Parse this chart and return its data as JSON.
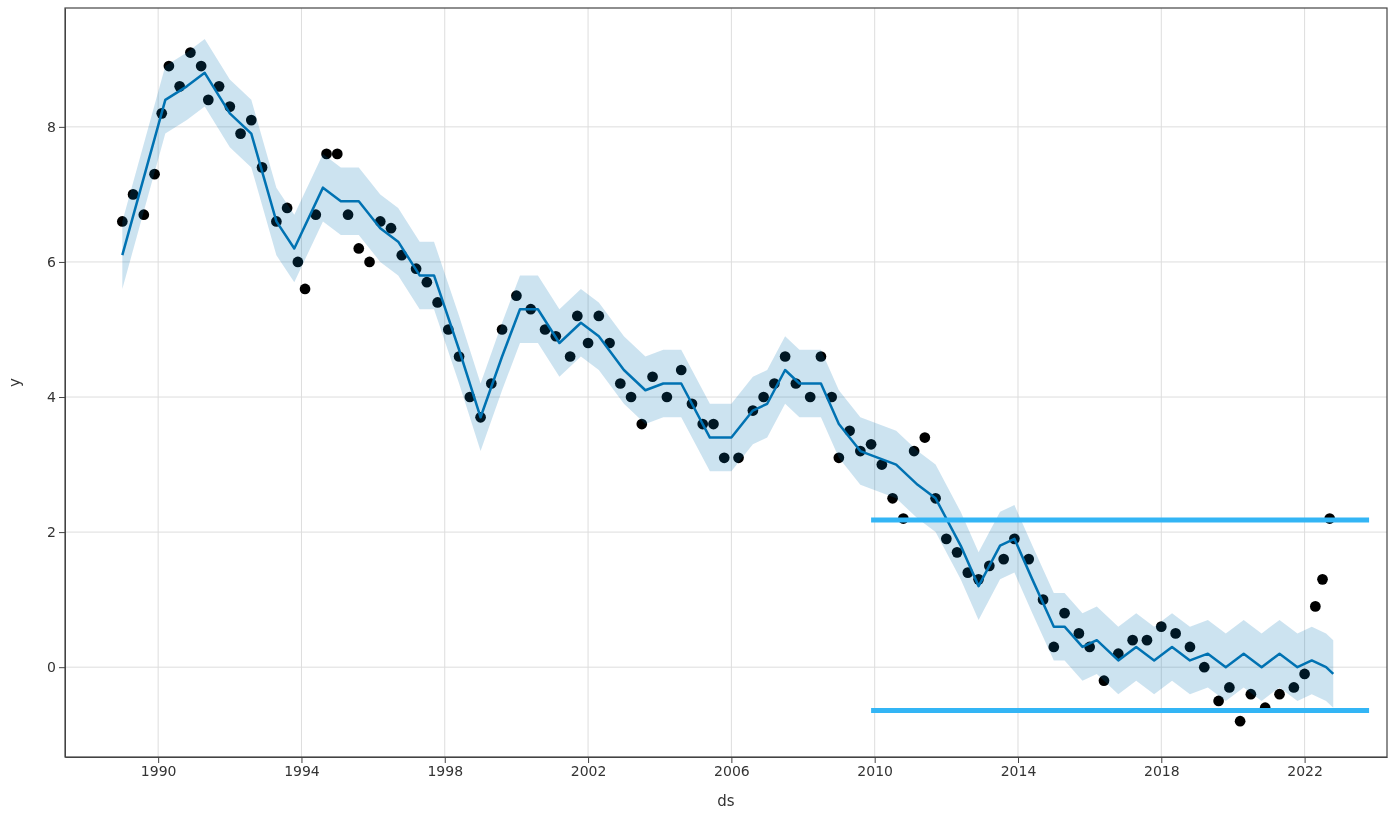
{
  "chart_data": {
    "type": "line",
    "xlabel": "ds",
    "ylabel": "y",
    "xlim": [
      1987.4,
      2024.3
    ],
    "ylim": [
      -1.33,
      9.76
    ],
    "xticks": [
      1990,
      1994,
      1998,
      2002,
      2006,
      2010,
      2014,
      2018,
      2022
    ],
    "yticks": [
      0,
      2,
      4,
      6,
      8
    ],
    "grid": true,
    "series": [
      {
        "type": "scatter",
        "marker": "circle",
        "color": "#000000",
        "x": [
          1989.0,
          1989.3,
          1989.6,
          1989.9,
          1990.1,
          1990.3,
          1990.6,
          1990.9,
          1991.2,
          1991.4,
          1991.7,
          1992.0,
          1992.3,
          1992.6,
          1992.9,
          1993.3,
          1993.6,
          1993.9,
          1994.1,
          1994.4,
          1994.7,
          1995.0,
          1995.3,
          1995.6,
          1995.9,
          1996.2,
          1996.5,
          1996.8,
          1997.2,
          1997.5,
          1997.8,
          1998.1,
          1998.4,
          1998.7,
          1999.0,
          1999.3,
          1999.6,
          2000.0,
          2000.4,
          2000.8,
          2001.1,
          2001.5,
          2001.7,
          2002.0,
          2002.3,
          2002.6,
          2002.9,
          2003.2,
          2003.5,
          2003.8,
          2004.2,
          2004.6,
          2004.9,
          2005.2,
          2005.5,
          2005.8,
          2006.2,
          2006.6,
          2006.9,
          2007.2,
          2007.5,
          2007.8,
          2008.2,
          2008.5,
          2008.8,
          2009.0,
          2009.3,
          2009.6,
          2009.9,
          2010.2,
          2010.5,
          2010.8,
          2011.1,
          2011.4,
          2011.7,
          2012.0,
          2012.3,
          2012.6,
          2012.9,
          2013.2,
          2013.6,
          2013.9,
          2014.3,
          2014.7,
          2015.0,
          2015.3,
          2015.7,
          2016.0,
          2016.4,
          2016.8,
          2017.2,
          2017.6,
          2018.0,
          2018.4,
          2018.8,
          2019.2,
          2019.6,
          2019.9,
          2020.2,
          2020.5,
          2020.9,
          2021.3,
          2021.7,
          2022.0,
          2022.3,
          2022.5,
          2022.7
        ],
        "values": [
          6.6,
          7.0,
          6.7,
          7.3,
          8.2,
          8.9,
          8.6,
          9.1,
          8.9,
          8.4,
          8.6,
          8.3,
          7.9,
          8.1,
          7.4,
          6.6,
          6.8,
          6.0,
          5.6,
          6.7,
          7.6,
          7.6,
          6.7,
          6.2,
          6.0,
          6.6,
          6.5,
          6.1,
          5.9,
          5.7,
          5.4,
          5.0,
          4.6,
          4.0,
          3.7,
          4.2,
          5.0,
          5.5,
          5.3,
          5.0,
          4.9,
          4.6,
          5.2,
          4.8,
          5.2,
          4.8,
          4.2,
          4.0,
          3.6,
          4.3,
          4.0,
          4.4,
          3.9,
          3.6,
          3.6,
          3.1,
          3.1,
          3.8,
          4.0,
          4.2,
          4.6,
          4.2,
          4.0,
          4.6,
          4.0,
          3.1,
          3.5,
          3.2,
          3.3,
          3.0,
          2.5,
          2.2,
          3.2,
          3.4,
          2.5,
          1.9,
          1.7,
          1.4,
          1.3,
          1.5,
          1.6,
          1.9,
          1.6,
          1.0,
          0.3,
          0.8,
          0.5,
          0.3,
          -0.2,
          0.2,
          0.4,
          0.4,
          0.6,
          0.5,
          0.3,
          0.0,
          -0.5,
          -0.3,
          -0.8,
          -0.4,
          -0.6,
          -0.4,
          -0.3,
          -0.1,
          0.9,
          1.3,
          2.2
        ]
      },
      {
        "color": "#0072b2",
        "x": [
          1989.0,
          1990.2,
          1990.8,
          1991.3,
          1992.0,
          1992.6,
          1993.3,
          1993.8,
          1994.6,
          1995.1,
          1995.6,
          1996.2,
          1996.7,
          1997.3,
          1997.7,
          1998.4,
          1999.0,
          1999.6,
          2000.1,
          2000.6,
          2001.2,
          2001.8,
          2002.3,
          2003.0,
          2003.6,
          2004.1,
          2004.6,
          2005.4,
          2006.0,
          2006.6,
          2007.0,
          2007.5,
          2007.9,
          2008.5,
          2009.0,
          2009.6,
          2010.1,
          2010.6,
          2011.2,
          2011.7,
          2012.4,
          2012.9,
          2013.5,
          2013.9,
          2014.4,
          2015.0,
          2015.3,
          2015.8,
          2016.2,
          2016.8,
          2017.3,
          2017.8,
          2018.3,
          2018.8,
          2019.3,
          2019.8,
          2020.3,
          2020.8,
          2021.3,
          2021.8,
          2022.2,
          2022.6,
          2022.8
        ],
        "values": [
          6.1,
          8.4,
          8.6,
          8.8,
          8.2,
          7.9,
          6.6,
          6.2,
          7.1,
          6.9,
          6.9,
          6.5,
          6.3,
          5.8,
          5.8,
          4.7,
          3.7,
          4.6,
          5.3,
          5.3,
          4.8,
          5.1,
          4.9,
          4.4,
          4.1,
          4.2,
          4.2,
          3.4,
          3.4,
          3.8,
          3.9,
          4.4,
          4.2,
          4.2,
          3.6,
          3.2,
          3.1,
          3.0,
          2.7,
          2.5,
          1.8,
          1.2,
          1.8,
          1.9,
          1.3,
          0.6,
          0.6,
          0.3,
          0.4,
          0.1,
          0.3,
          0.1,
          0.3,
          0.1,
          0.2,
          0.0,
          0.2,
          0.0,
          0.2,
          0.0,
          0.1,
          0.0,
          -0.1
        ],
        "lower": [
          5.6,
          7.9,
          8.1,
          8.3,
          7.7,
          7.4,
          6.1,
          5.7,
          6.6,
          6.4,
          6.4,
          6.0,
          5.8,
          5.3,
          5.3,
          4.2,
          3.2,
          4.1,
          4.8,
          4.8,
          4.3,
          4.6,
          4.4,
          3.9,
          3.6,
          3.7,
          3.7,
          2.9,
          2.9,
          3.3,
          3.4,
          3.9,
          3.7,
          3.7,
          3.1,
          2.7,
          2.6,
          2.5,
          2.2,
          2.0,
          1.3,
          0.7,
          1.3,
          1.4,
          0.8,
          0.1,
          0.1,
          -0.2,
          -0.1,
          -0.4,
          -0.2,
          -0.4,
          -0.2,
          -0.4,
          -0.3,
          -0.5,
          -0.3,
          -0.5,
          -0.3,
          -0.5,
          -0.4,
          -0.5,
          -0.6
        ],
        "upper": [
          6.6,
          8.9,
          9.1,
          9.3,
          8.7,
          8.4,
          7.1,
          6.7,
          7.6,
          7.4,
          7.4,
          7.0,
          6.8,
          6.3,
          6.3,
          5.2,
          4.2,
          5.1,
          5.8,
          5.8,
          5.3,
          5.6,
          5.4,
          4.9,
          4.6,
          4.7,
          4.7,
          3.9,
          3.9,
          4.3,
          4.4,
          4.9,
          4.7,
          4.7,
          4.1,
          3.7,
          3.6,
          3.5,
          3.2,
          3.0,
          2.3,
          1.7,
          2.3,
          2.4,
          1.8,
          1.1,
          1.1,
          0.8,
          0.9,
          0.6,
          0.8,
          0.6,
          0.8,
          0.6,
          0.7,
          0.5,
          0.7,
          0.5,
          0.7,
          0.5,
          0.6,
          0.5,
          0.4
        ]
      },
      {
        "color": "#33b5f5",
        "x": [
          2009.9,
          2023.8
        ],
        "values": [
          2.18,
          2.18
        ]
      },
      {
        "color": "#33b5f5",
        "x": [
          2009.9,
          2023.8
        ],
        "values": [
          -0.64,
          -0.64
        ]
      }
    ]
  }
}
